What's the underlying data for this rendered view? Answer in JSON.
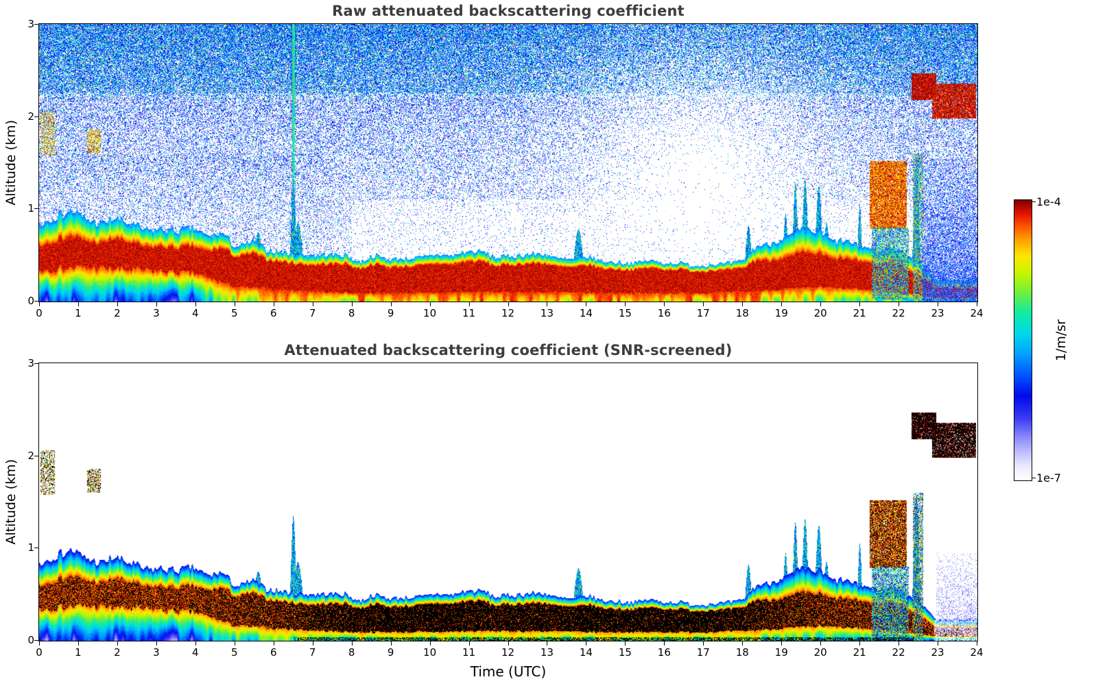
{
  "figure": {
    "background": "#ffffff"
  },
  "chart_data": [
    {
      "type": "heatmap",
      "panel_id": "raw",
      "title": "Raw attenuated backscattering coefficient",
      "ylabel": "Altitude (km)",
      "xlim": [
        0,
        24
      ],
      "ylim": [
        0,
        3
      ],
      "xticks": [
        0,
        1,
        2,
        3,
        4,
        5,
        6,
        7,
        8,
        9,
        10,
        11,
        12,
        13,
        14,
        15,
        16,
        17,
        18,
        19,
        20,
        21,
        22,
        23,
        24
      ],
      "yticks": [
        0,
        1,
        2,
        3
      ],
      "colorbar": {
        "max_label": "1e-4",
        "min_label": "1e-7",
        "units": "1/m/sr",
        "stops": [
          [
            0.0,
            "#ffffff"
          ],
          [
            0.05,
            "#ebebff"
          ],
          [
            0.1,
            "#bebeff"
          ],
          [
            0.16,
            "#8282fa"
          ],
          [
            0.22,
            "#3c3cf5"
          ],
          [
            0.3,
            "#000aeb"
          ],
          [
            0.38,
            "#005aff"
          ],
          [
            0.46,
            "#00aaff"
          ],
          [
            0.53,
            "#00dce6"
          ],
          [
            0.6,
            "#14eba0"
          ],
          [
            0.67,
            "#6ef03c"
          ],
          [
            0.74,
            "#c8f500"
          ],
          [
            0.8,
            "#ffe600"
          ],
          [
            0.86,
            "#ffa000"
          ],
          [
            0.91,
            "#ff5000"
          ],
          [
            0.95,
            "#e61400"
          ],
          [
            1.0,
            "#800000"
          ]
        ]
      },
      "layer": {
        "hours": [
          0,
          1,
          2,
          3,
          4,
          5,
          6,
          7,
          8,
          9,
          10,
          11,
          12,
          13,
          14,
          15,
          16,
          17,
          18,
          19,
          20,
          21,
          22,
          23,
          24
        ],
        "top_km": [
          0.88,
          0.95,
          0.85,
          0.8,
          0.78,
          0.62,
          0.58,
          0.52,
          0.47,
          0.45,
          0.46,
          0.5,
          0.52,
          0.52,
          0.46,
          0.42,
          0.4,
          0.4,
          0.46,
          0.72,
          0.78,
          0.55,
          0.55,
          0.24,
          0.22
        ],
        "core_top_km": [
          0.62,
          0.68,
          0.64,
          0.6,
          0.58,
          0.5,
          0.46,
          0.4,
          0.38,
          0.36,
          0.37,
          0.4,
          0.41,
          0.41,
          0.37,
          0.34,
          0.33,
          0.33,
          0.37,
          0.48,
          0.52,
          0.4,
          0.38,
          0.14,
          0.12
        ],
        "core_bottom_km": [
          0.34,
          0.37,
          0.35,
          0.33,
          0.3,
          0.16,
          0.13,
          0.11,
          0.09,
          0.09,
          0.09,
          0.1,
          0.1,
          0.1,
          0.09,
          0.09,
          0.09,
          0.09,
          0.1,
          0.13,
          0.15,
          0.13,
          0.1,
          0.04,
          0.04
        ],
        "surface_value_raw": [
          0.32,
          0.32,
          0.32,
          0.32,
          0.35,
          0.7,
          0.75,
          0.8,
          0.8,
          0.8,
          0.8,
          0.8,
          0.8,
          0.8,
          0.8,
          0.8,
          0.8,
          0.8,
          0.8,
          0.75,
          0.7,
          0.65,
          0.6,
          0.5,
          0.5
        ],
        "surface_value_screened": [
          0.26,
          0.26,
          0.26,
          0.26,
          0.3,
          0.52,
          0.58,
          0.62,
          0.62,
          0.62,
          0.62,
          0.62,
          0.62,
          0.62,
          0.62,
          0.62,
          0.62,
          0.62,
          0.62,
          0.6,
          0.55,
          0.5,
          0.45,
          0.4,
          0.4
        ],
        "black_fraction_screened": [
          0.45,
          0.45,
          0.45,
          0.45,
          0.5,
          0.55,
          0.6,
          0.75,
          0.85,
          0.88,
          0.88,
          0.85,
          0.85,
          0.85,
          0.88,
          0.88,
          0.88,
          0.88,
          0.85,
          0.7,
          0.6,
          0.55,
          0.5,
          0.4,
          0.4
        ]
      },
      "spikes": [
        [
          4.55,
          0.72,
          0.1
        ],
        [
          5.6,
          0.75,
          0.12
        ],
        [
          6.5,
          1.35,
          0.06
        ],
        [
          6.62,
          0.85,
          0.12
        ],
        [
          13.8,
          0.78,
          0.12
        ],
        [
          18.15,
          0.82,
          0.08
        ],
        [
          19.1,
          0.95,
          0.06
        ],
        [
          19.35,
          1.28,
          0.06
        ],
        [
          19.6,
          1.32,
          0.07
        ],
        [
          19.95,
          1.25,
          0.08
        ],
        [
          20.15,
          0.85,
          0.08
        ],
        [
          21.0,
          1.05,
          0.05
        ],
        [
          22.45,
          1.55,
          0.07
        ]
      ],
      "clouds": [
        {
          "t0": 0.02,
          "t1": 0.4,
          "z0": 1.58,
          "z1": 2.06,
          "density": 0.45,
          "value": 0.8,
          "spread": 0.18,
          "black": 0.5,
          "panels": "both"
        },
        {
          "t0": 1.22,
          "t1": 1.58,
          "z0": 1.6,
          "z1": 1.86,
          "density": 0.55,
          "value": 0.82,
          "spread": 0.15,
          "black": 0.5,
          "panels": "both"
        },
        {
          "t0": 21.25,
          "t1": 22.2,
          "z0": 0.78,
          "z1": 1.52,
          "density": 0.92,
          "value": 0.9,
          "spread": 0.12,
          "black": 0.35,
          "panels": "both"
        },
        {
          "t0": 21.3,
          "t1": 22.25,
          "z0": 0.02,
          "z1": 0.8,
          "density": 0.7,
          "value": 0.5,
          "spread": 0.3,
          "black": 0.08,
          "panels": "both"
        },
        {
          "t0": 22.35,
          "t1": 22.62,
          "z0": 0.0,
          "z1": 1.6,
          "density": 0.65,
          "value": 0.55,
          "spread": 0.35,
          "black": 0.15,
          "panels": "both"
        },
        {
          "t0": 22.33,
          "t1": 22.95,
          "z0": 2.18,
          "z1": 2.47,
          "density": 0.95,
          "value": 0.97,
          "spread": 0.05,
          "black": 0.8,
          "panels": "both"
        },
        {
          "t0": 22.85,
          "t1": 23.98,
          "z0": 1.98,
          "z1": 2.36,
          "density": 0.9,
          "value": 0.96,
          "spread": 0.06,
          "black": 0.8,
          "panels": "both"
        },
        {
          "t0": 22.6,
          "t1": 24.0,
          "z0": 0.0,
          "z1": 1.55,
          "density": 0.8,
          "value": 0.3,
          "spread": 0.18,
          "black": 0,
          "panels": "raw",
          "fade_up": true
        },
        {
          "t0": 22.95,
          "t1": 24.0,
          "z0": 0.05,
          "z1": 0.95,
          "density": 0.4,
          "value": 0.13,
          "spread": 0.1,
          "black": 0,
          "panels": "screened",
          "fade_up": true
        }
      ],
      "noise": {
        "gap_t_center": 16.9,
        "gap_t_sigma": 2.5,
        "gap_z_center": 1.35,
        "gap_z_sigma": 0.9
      }
    },
    {
      "type": "heatmap",
      "panel_id": "screened",
      "title": "Attenuated backscattering coefficient (SNR-screened)",
      "ylabel": "Altitude (km)",
      "xlabel": "Time (UTC)",
      "xlim": [
        0,
        24
      ],
      "ylim": [
        0,
        3
      ],
      "saturated_color": "#000000",
      "layer_source": "raw"
    }
  ]
}
